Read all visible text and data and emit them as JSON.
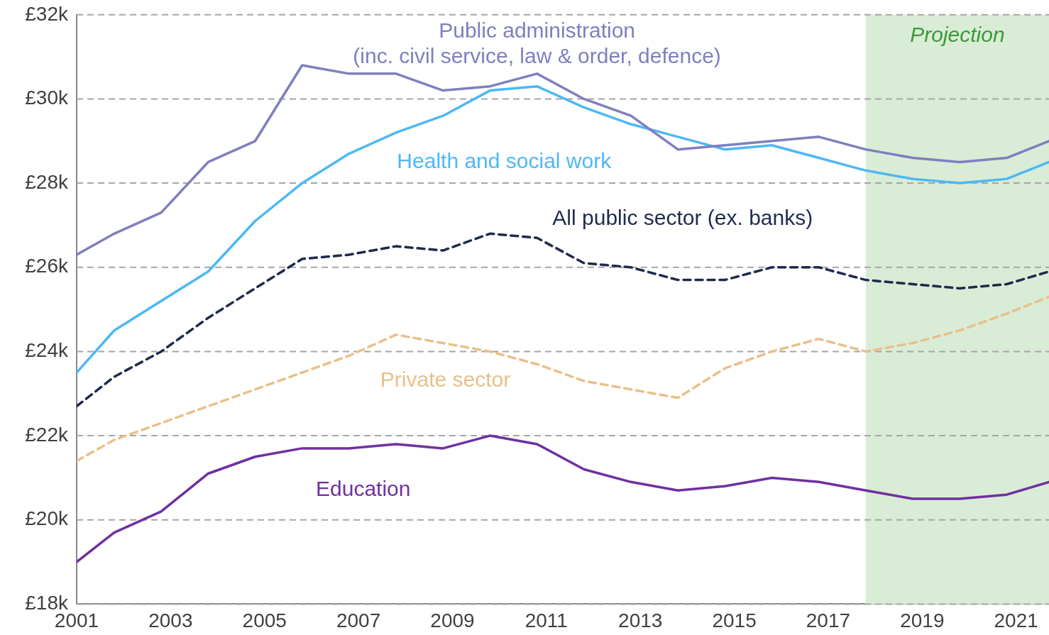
{
  "chart_data": {
    "type": "line",
    "x": [
      2001,
      2001.8,
      2002.8,
      2003.8,
      2004.8,
      2005.8,
      2006.8,
      2007.8,
      2008.8,
      2009.8,
      2010.8,
      2011.8,
      2012.8,
      2013.8,
      2014.8,
      2015.8,
      2016.8,
      2017.8,
      2018.8,
      2019.8,
      2020.8,
      2021.7
    ],
    "series": [
      {
        "name": "Public administration\n(inc. civil service, law & order, defence)",
        "color": "#7f7fbf",
        "line_style": "solid",
        "values": [
          26.3,
          26.8,
          27.3,
          28.5,
          29.0,
          30.8,
          30.6,
          30.6,
          30.2,
          30.3,
          30.6,
          30.0,
          29.6,
          28.8,
          28.9,
          29.0,
          29.1,
          28.8,
          28.6,
          28.5,
          28.6,
          29.0
        ]
      },
      {
        "name": "Health and social work",
        "color": "#4db8f5",
        "line_style": "solid",
        "values": [
          23.5,
          24.5,
          25.2,
          25.9,
          27.1,
          28.0,
          28.7,
          29.2,
          29.6,
          30.2,
          30.3,
          29.8,
          29.4,
          29.1,
          28.8,
          28.9,
          28.6,
          28.3,
          28.1,
          28.0,
          28.1,
          28.5
        ]
      },
      {
        "name": "All public sector (ex. banks)",
        "color": "#1f2a4d",
        "line_style": "dashed",
        "values": [
          22.7,
          23.4,
          24.0,
          24.8,
          25.5,
          26.2,
          26.3,
          26.5,
          26.4,
          26.8,
          26.7,
          26.1,
          26.0,
          25.7,
          25.7,
          26.0,
          26.0,
          25.7,
          25.6,
          25.5,
          25.6,
          25.9
        ]
      },
      {
        "name": "Private sector",
        "color": "#e8c08a",
        "line_style": "dashed",
        "values": [
          21.4,
          21.9,
          22.3,
          22.7,
          23.1,
          23.5,
          23.9,
          24.4,
          24.2,
          24.0,
          23.7,
          23.3,
          23.1,
          22.9,
          23.6,
          24.0,
          24.3,
          24.0,
          24.2,
          24.5,
          24.9,
          25.3
        ]
      },
      {
        "name": "Education",
        "color": "#7030a0",
        "line_style": "solid",
        "values": [
          19.0,
          19.7,
          20.2,
          21.1,
          21.5,
          21.7,
          21.7,
          21.8,
          21.7,
          22.0,
          21.8,
          21.2,
          20.9,
          20.7,
          20.8,
          21.0,
          20.9,
          20.7,
          20.5,
          20.5,
          20.6,
          20.9
        ]
      }
    ],
    "xlim": [
      2001,
      2021.7
    ],
    "xticks": [
      2001,
      2003,
      2005,
      2007,
      2009,
      2011,
      2013,
      2015,
      2017,
      2019,
      2021
    ],
    "ylim": [
      18,
      32
    ],
    "yticks": [
      {
        "value": 18,
        "label": "£18k"
      },
      {
        "value": 20,
        "label": "£20k"
      },
      {
        "value": 22,
        "label": "£22k"
      },
      {
        "value": 24,
        "label": "£24k"
      },
      {
        "value": 26,
        "label": "£26k"
      },
      {
        "value": 28,
        "label": "£28k"
      },
      {
        "value": 30,
        "label": "£30k"
      },
      {
        "value": 32,
        "label": "£32k"
      }
    ],
    "bands": [
      {
        "axis": "x",
        "from": 2017.8,
        "to": 2021.7,
        "label": "Projection",
        "color": "#d9ecd6"
      }
    ],
    "grid": "y",
    "legend": false,
    "marker": "none"
  }
}
